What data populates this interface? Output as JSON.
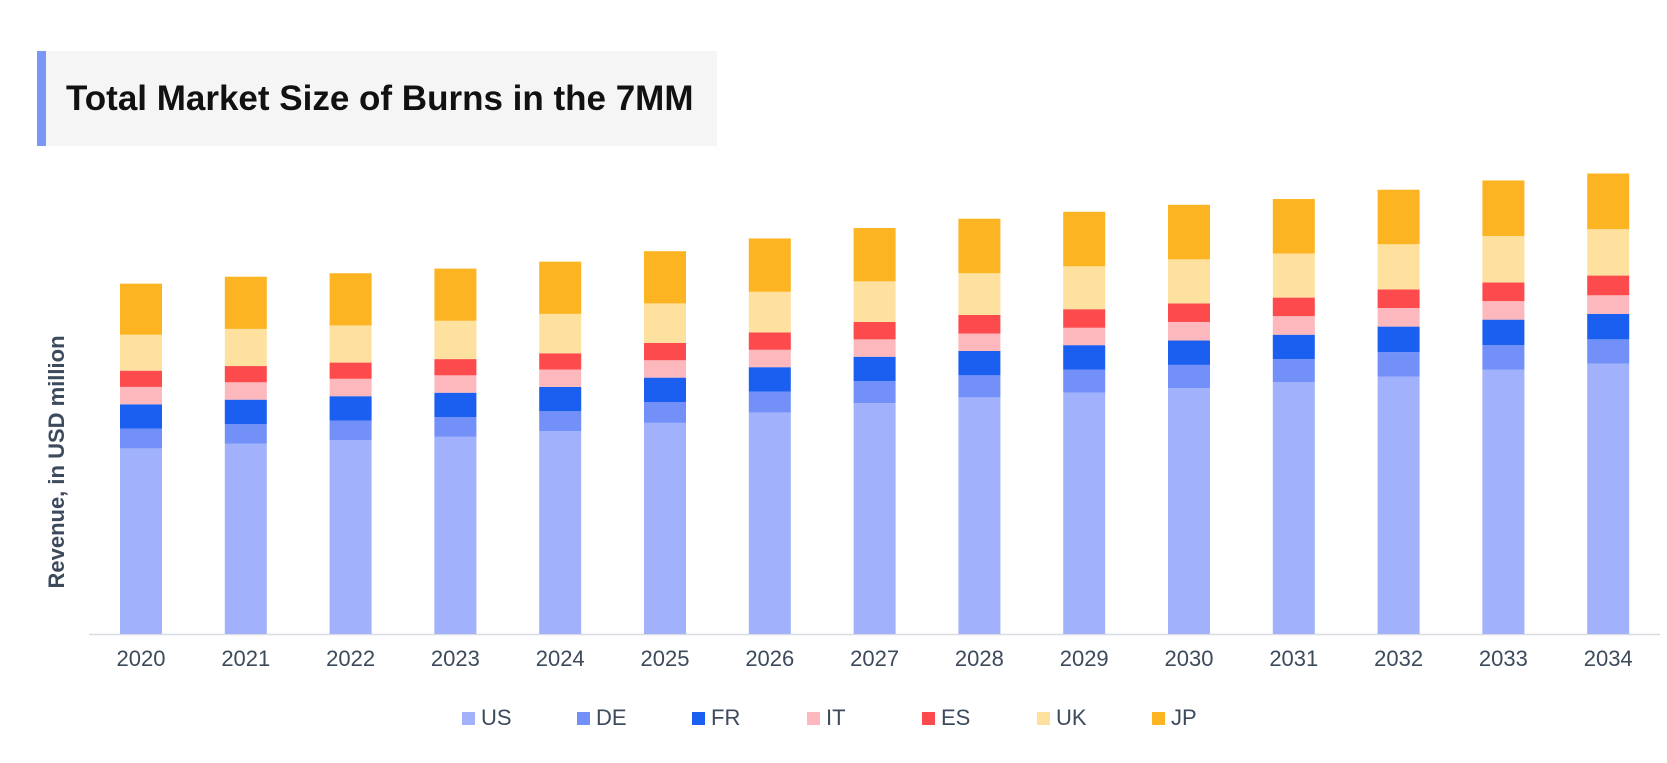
{
  "title": "Total Market Size of Burns in the 7MM",
  "chart_data": {
    "type": "bar",
    "stacked": true,
    "title": "Total Market Size of Burns in the 7MM",
    "xlabel": "",
    "ylabel": "Revenue, in USD million",
    "grid": false,
    "legend_position": "bottom",
    "categories": [
      "2020",
      "2021",
      "2022",
      "2023",
      "2024",
      "2025",
      "2026",
      "2027",
      "2028",
      "2029",
      "2030",
      "2031",
      "2032",
      "2033",
      "2034"
    ],
    "ylim": [
      0,
      400
    ],
    "series": [
      {
        "name": "US",
        "color": "#a1b1fc",
        "values": [
          160,
          164,
          167,
          170,
          175,
          182,
          191,
          199,
          204,
          208,
          212,
          217,
          222,
          228,
          233
        ]
      },
      {
        "name": "DE",
        "color": "#7290f7",
        "values": [
          17,
          17,
          17,
          17,
          17,
          18,
          18,
          19,
          19,
          20,
          20,
          20,
          21,
          21,
          21
        ]
      },
      {
        "name": "FR",
        "color": "#1b5ff0",
        "values": [
          21,
          21,
          21,
          21,
          21,
          21,
          21,
          21,
          21,
          21,
          21,
          21,
          22,
          22,
          22
        ]
      },
      {
        "name": "IT",
        "color": "#fcb8bc",
        "values": [
          15,
          15,
          15,
          15,
          15,
          15,
          15,
          15,
          15,
          15,
          16,
          16,
          16,
          16,
          16
        ]
      },
      {
        "name": "ES",
        "color": "#fd4a4d",
        "values": [
          14,
          14,
          14,
          14,
          14,
          15,
          15,
          15,
          16,
          16,
          16,
          16,
          16,
          16,
          17
        ]
      },
      {
        "name": "UK",
        "color": "#fee19f",
        "values": [
          31,
          32,
          32,
          33,
          34,
          34,
          35,
          35,
          36,
          37,
          38,
          38,
          39,
          40,
          40
        ]
      },
      {
        "name": "JP",
        "color": "#fdb422",
        "values": [
          44,
          45,
          45,
          45,
          45,
          45,
          46,
          46,
          47,
          47,
          47,
          47,
          47,
          48,
          48
        ]
      }
    ]
  }
}
